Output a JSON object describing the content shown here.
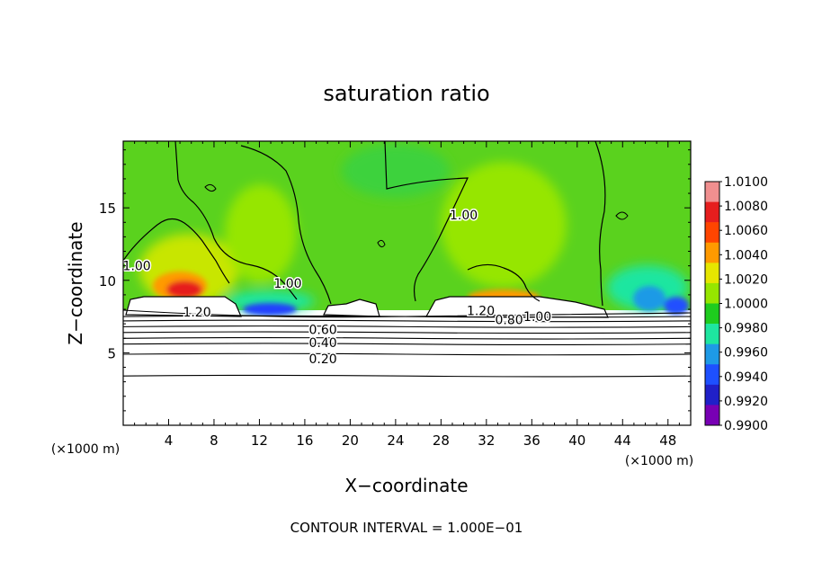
{
  "chart_data": {
    "type": "heatmap",
    "title": "saturation ratio",
    "xlabel": "X−coordinate",
    "ylabel": "Z−coordinate",
    "x_unit_left": "(×1000 m)",
    "x_unit_right": "(×1000 m)",
    "xlim": [
      0,
      50
    ],
    "ylim": [
      0,
      19.6
    ],
    "xticks": [
      4,
      8,
      12,
      16,
      20,
      24,
      28,
      32,
      36,
      40,
      44,
      48
    ],
    "yticks": [
      5,
      10,
      15
    ],
    "footer": "CONTOUR INTERVAL = 1.000E−01",
    "colorbar": {
      "labels": [
        "1.0100",
        "1.0080",
        "1.0060",
        "1.0040",
        "1.0020",
        "1.0000",
        "0.9980",
        "0.9960",
        "0.9940",
        "0.9920",
        "0.9900"
      ],
      "colors": [
        "#f08f8f",
        "#e61e1e",
        "#ff4500",
        "#ff9a00",
        "#e6e600",
        "#96e600",
        "#1ecc1e",
        "#1ee6a0",
        "#1e9ae6",
        "#1e50ff",
        "#2020c8",
        "#7800b4"
      ]
    },
    "contour_labels": [
      {
        "text": "1.00",
        "x": 1.2,
        "z": 11.0
      },
      {
        "text": "1.00",
        "x": 14.5,
        "z": 9.8
      },
      {
        "text": "1.00",
        "x": 30.0,
        "z": 14.5
      },
      {
        "text": "1.20",
        "x": 6.5,
        "z": 7.8
      },
      {
        "text": "1.20",
        "x": 31.5,
        "z": 7.9
      },
      {
        "text": "0.80",
        "x": 34.0,
        "z": 7.3
      },
      {
        "text": "1.00",
        "x": 36.5,
        "z": 7.5
      },
      {
        "text": "0.60",
        "x": 17.6,
        "z": 6.6
      },
      {
        "text": "0.40",
        "x": 17.6,
        "z": 5.7
      },
      {
        "text": "0.20",
        "x": 17.6,
        "z": 4.6
      }
    ],
    "horizontal_contours_z": [
      3.4,
      4.9,
      5.6,
      6.0,
      6.4,
      6.8,
      7.2,
      7.5
    ]
  }
}
